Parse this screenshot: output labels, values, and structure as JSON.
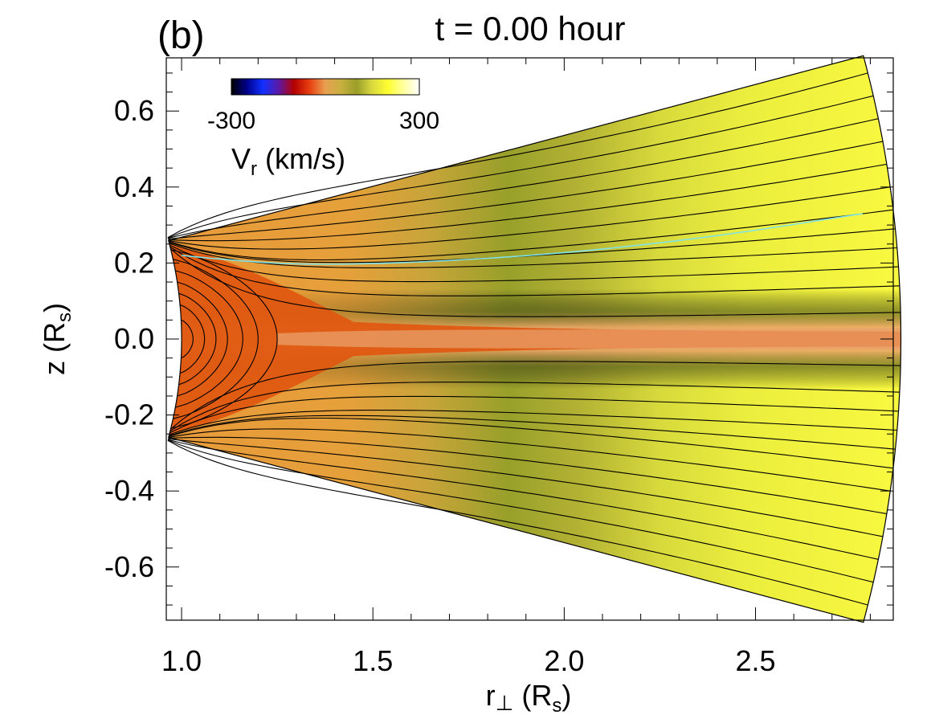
{
  "chart_data": {
    "type": "heatmap",
    "panel_label": "(b)",
    "title": "t = 0.00 hour",
    "xlabel": {
      "main": "r",
      "operator": "⊥",
      "unit_open": " (R",
      "unit_sub": "s",
      "unit_close": ")"
    },
    "ylabel": {
      "main": "z (R",
      "sub": "s",
      "close": ")"
    },
    "xlim": [
      0.96,
      2.86
    ],
    "ylim": [
      -0.74,
      0.74
    ],
    "x_ticks": [
      1.0,
      1.5,
      2.0,
      2.5
    ],
    "x_tick_labels": [
      "1.0",
      "1.5",
      "2.0",
      "2.5"
    ],
    "x_minor_step": 0.1,
    "y_ticks": [
      -0.6,
      -0.4,
      -0.2,
      0.0,
      0.2,
      0.4,
      0.6
    ],
    "y_tick_labels": [
      "-0.6",
      "-0.4",
      "-0.2",
      "0.0",
      "0.2",
      "0.4",
      "0.6"
    ],
    "y_minor_step": 0.05,
    "domain": {
      "r_inner": 1.0,
      "r_outer": 2.88,
      "theta_half_deg": 15
    },
    "colorbar": {
      "min": -300,
      "max": 300,
      "min_label": "-300",
      "max_label": "300",
      "label_main": "V",
      "label_sub": "r",
      "label_unit": " (km/s)",
      "colormap": "blue-red-yellow",
      "stops": [
        "#000000",
        "#00008b",
        "#1030ff",
        "#5a1aa8",
        "#b40000",
        "#e84010",
        "#e8a050",
        "#c8b040",
        "#9a9e28",
        "#dada40",
        "#fefe30",
        "#ffffa0",
        "#ffffff"
      ]
    },
    "field_colors": {
      "slow_core": "#e05510",
      "sheet": "#e8a06a",
      "lower_corona": "#e8a03a",
      "mid_band": "#9a9e2a",
      "upper_band": "#d4d63c",
      "fast_wind": "#f4f63e",
      "dark_flank": "#5a6220"
    },
    "closed_field_lines": {
      "apex_r": [
        1.03,
        1.06,
        1.09,
        1.12,
        1.16,
        1.2,
        1.25
      ],
      "foot_z": [
        0.05,
        0.09,
        0.12,
        0.15,
        0.18,
        0.21,
        0.235
      ]
    },
    "open_field_lines": {
      "foot_z": [
        0.237,
        0.242,
        0.247,
        0.252,
        0.255,
        0.257,
        0.259,
        0.261,
        0.263,
        0.265,
        0.266,
        0.267
      ],
      "end_z": [
        0.07,
        0.14,
        0.19,
        0.24,
        0.29,
        0.34,
        0.4,
        0.46,
        0.52,
        0.58,
        0.64,
        0.7
      ]
    },
    "highlight_line": {
      "color": "#7fe3e8",
      "points": [
        [
          1.0,
          0.22
        ],
        [
          1.1,
          0.21
        ],
        [
          1.3,
          0.195
        ],
        [
          1.6,
          0.2
        ],
        [
          2.0,
          0.225
        ],
        [
          2.4,
          0.27
        ],
        [
          2.78,
          0.33
        ]
      ]
    }
  }
}
